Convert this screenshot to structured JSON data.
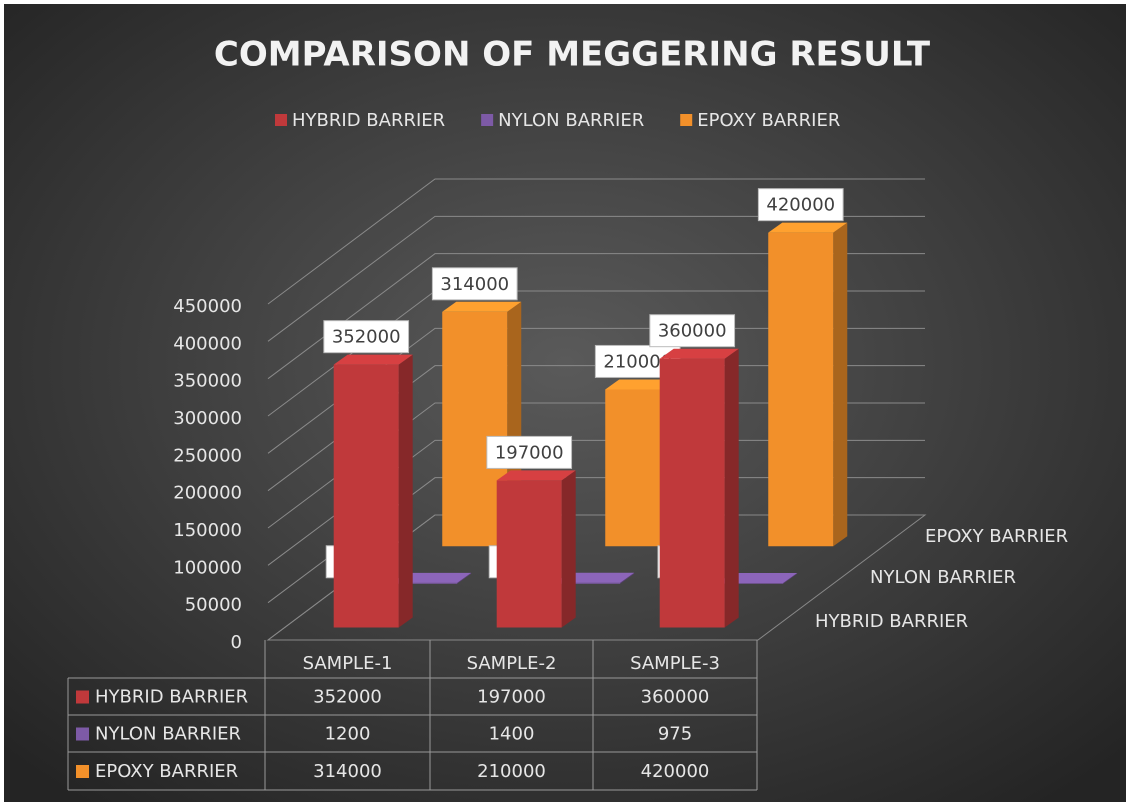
{
  "chart_data": {
    "type": "bar3d",
    "title": "COMPARISON OF MEGGERING RESULT",
    "categories": [
      "SAMPLE-1",
      "SAMPLE-2",
      "SAMPLE-3"
    ],
    "series": [
      {
        "name": "HYBRID BARRIER",
        "color": "#c0393b",
        "values": [
          352000,
          197000,
          360000
        ]
      },
      {
        "name": "NYLON BARRIER",
        "color": "#7d5aa6",
        "values": [
          1200,
          1400,
          975
        ]
      },
      {
        "name": "EPOXY  BARRIER",
        "color": "#f2902a",
        "values": [
          314000,
          210000,
          420000
        ]
      }
    ],
    "ylim": [
      0,
      450000
    ],
    "yticks": [
      0,
      50000,
      100000,
      150000,
      200000,
      250000,
      300000,
      350000,
      400000,
      450000
    ],
    "grid": true,
    "legend": "top",
    "data_table": true
  }
}
